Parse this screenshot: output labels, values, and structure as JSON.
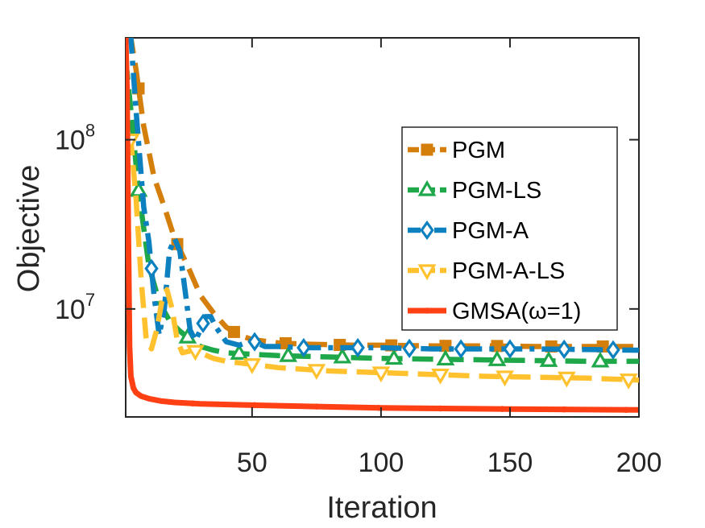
{
  "chart_data": {
    "type": "line",
    "title": "",
    "xlabel": "Iteration",
    "ylabel": "Objective",
    "yscale": "log",
    "xlim": [
      1,
      200
    ],
    "ylim": [
      2300000,
      400000000
    ],
    "x_ticks": [
      {
        "value": 50,
        "label": "50"
      },
      {
        "value": 100,
        "label": "100"
      },
      {
        "value": 150,
        "label": "150"
      },
      {
        "value": 200,
        "label": "200"
      }
    ],
    "y_ticks": [
      {
        "value": 10000000,
        "base": "10",
        "exp": "7"
      },
      {
        "value": 100000000,
        "base": "10",
        "exp": "8"
      }
    ],
    "grid": false,
    "legend": {
      "position": "top-right"
    },
    "series": [
      {
        "name": "PGM",
        "color": "#D47E0C",
        "marker": "square",
        "dash": "dash",
        "x": [
          1,
          3,
          5,
          8,
          12,
          16,
          20,
          25,
          30,
          35,
          40,
          45,
          50,
          60,
          70,
          80,
          90,
          100,
          120,
          140,
          160,
          180,
          200
        ],
        "y": [
          400000000,
          400000000,
          260000000,
          120000000,
          60000000,
          40000000,
          26000000,
          18000000,
          12000000,
          9500000,
          7800000,
          7000000,
          6600000,
          6300000,
          6200000,
          6150000,
          6100000,
          6100000,
          6050000,
          6050000,
          6000000,
          6000000,
          6000000
        ],
        "marker_x": [
          6,
          21,
          43,
          63,
          84,
          104,
          125,
          145,
          166,
          186
        ]
      },
      {
        "name": "PGM-LS",
        "color": "#1FA84A",
        "marker": "triangle-up",
        "dash": "dash",
        "x": [
          1,
          3,
          6,
          10,
          14,
          18,
          22,
          26,
          30,
          35,
          40,
          50,
          60,
          80,
          100,
          120,
          140,
          160,
          180,
          200
        ],
        "y": [
          300000000,
          150000000,
          50000000,
          18000000,
          11000000,
          8500000,
          7400000,
          6600000,
          6000000,
          5700000,
          5500000,
          5400000,
          5300000,
          5200000,
          5100000,
          5050000,
          5000000,
          4950000,
          4900000,
          4900000
        ],
        "marker_x": [
          6,
          25,
          45,
          64,
          85,
          105,
          125,
          145,
          165,
          185
        ]
      },
      {
        "name": "PGM-A",
        "color": "#0D80BF",
        "marker": "diamond",
        "dash": "dashdot",
        "x": [
          1,
          3,
          5,
          8,
          10,
          12,
          14,
          16,
          18,
          20,
          22,
          24,
          26,
          28,
          30,
          32,
          34,
          36,
          40,
          45,
          50,
          55,
          60,
          70,
          80,
          90,
          100,
          120,
          140,
          160,
          180,
          200
        ],
        "y": [
          400000000,
          400000000,
          150000000,
          40000000,
          25000000,
          12000000,
          7000000,
          10000000,
          22000000,
          26000000,
          22000000,
          13000000,
          7500000,
          6500000,
          7500000,
          9000000,
          9000000,
          7800000,
          6400000,
          6100000,
          6500000,
          6000000,
          6000000,
          5900000,
          5900000,
          5900000,
          5900000,
          5800000,
          5800000,
          5800000,
          5750000,
          5700000
        ],
        "marker_x": [
          11,
          31,
          51,
          70,
          91,
          111,
          131,
          150,
          171,
          190
        ]
      },
      {
        "name": "PGM-A-LS",
        "color": "#FFC22E",
        "marker": "triangle-down",
        "dash": "dash",
        "x": [
          1,
          3,
          5,
          7,
          9,
          11,
          13,
          15,
          17,
          19,
          21,
          23,
          25,
          27,
          30,
          35,
          40,
          50,
          60,
          80,
          100,
          120,
          140,
          160,
          180,
          200
        ],
        "y": [
          100000000,
          100000000,
          45000000,
          15000000,
          6500000,
          5800000,
          7500000,
          11000000,
          13000000,
          10000000,
          6500000,
          5500000,
          5600000,
          5700000,
          5500000,
          5100000,
          4900000,
          4700000,
          4500000,
          4300000,
          4200000,
          4100000,
          4000000,
          3950000,
          3900000,
          3800000
        ],
        "marker_x": [
          3,
          28,
          50,
          75,
          100,
          123,
          148,
          172,
          196
        ]
      },
      {
        "name": "GMSA(ω=1)",
        "color": "#FF4014",
        "marker": "dot",
        "dash": "solid",
        "x": [
          1,
          1.5,
          2,
          2.5,
          3,
          4,
          5,
          7,
          10,
          15,
          20,
          30,
          50,
          75,
          100,
          150,
          200
        ],
        "y": [
          400000000,
          200000000,
          30000000,
          6000000,
          4000000,
          3400000,
          3200000,
          3050000,
          2950000,
          2850000,
          2800000,
          2750000,
          2700000,
          2650000,
          2600000,
          2560000,
          2530000
        ],
        "marker_x": [
          1,
          27,
          51,
          75,
          99,
          123,
          147,
          171,
          195
        ]
      }
    ]
  }
}
